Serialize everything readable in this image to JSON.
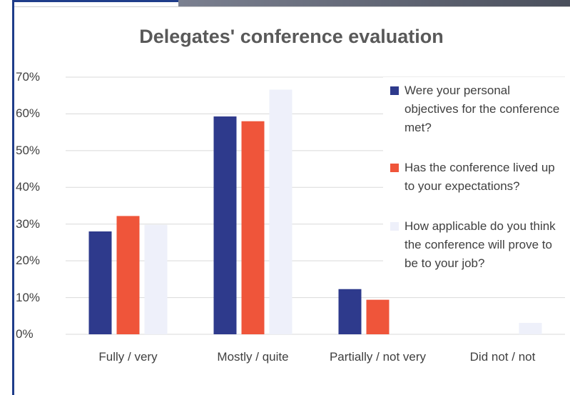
{
  "chart_data": {
    "type": "bar",
    "title": "Delegates' conference evaluation",
    "categories": [
      "Fully / very",
      "Mostly / quite",
      "Partially / not very",
      "Did not / not"
    ],
    "series": [
      {
        "name": "Were your personal objectives for the conference met?",
        "color": "#2e3a8c",
        "values": [
          28,
          59.3,
          12.3,
          0
        ]
      },
      {
        "name": "Has the conference lived up to your expectations?",
        "color": "#ef553a",
        "values": [
          32.2,
          58,
          9.4,
          0
        ]
      },
      {
        "name": "How applicable do you think the conference will prove to be to your job?",
        "color": "#eef0fa",
        "values": [
          29.8,
          66.6,
          0,
          3.1
        ]
      }
    ],
    "ylim": [
      0,
      70
    ],
    "yticks": [
      {
        "value": 0,
        "label": "0%"
      },
      {
        "value": 10,
        "label": "10%"
      },
      {
        "value": 20,
        "label": "20%"
      },
      {
        "value": 30,
        "label": "30%"
      },
      {
        "value": 40,
        "label": "40%"
      },
      {
        "value": 50,
        "label": "50%"
      },
      {
        "value": 60,
        "label": "60%"
      },
      {
        "value": 70,
        "label": "70%"
      }
    ],
    "grid": true,
    "legend": "upper right"
  }
}
